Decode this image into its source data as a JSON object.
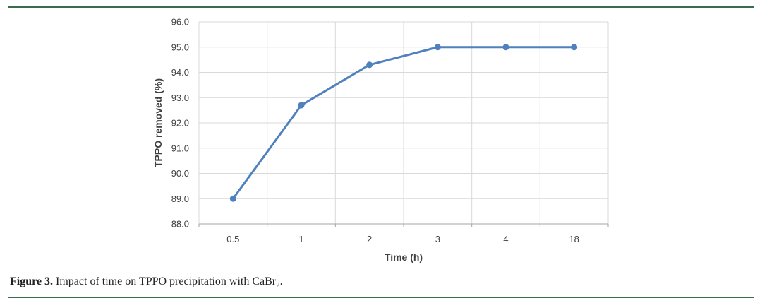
{
  "caption": {
    "label": "Figure 3.",
    "text_before": " Impact of time on TPPO precipitation with CaBr",
    "subscript": "2",
    "text_after": "."
  },
  "chart_data": {
    "type": "line",
    "categories": [
      "0.5",
      "1",
      "2",
      "3",
      "4",
      "18"
    ],
    "series": [
      {
        "values": [
          89.0,
          92.7,
          94.3,
          95.0,
          95.0,
          95.0
        ],
        "color": "#4f81bd"
      }
    ],
    "xlabel": "Time (h)",
    "ylabel": "TPPO removed (%)",
    "ylim": [
      88.0,
      96.0
    ],
    "yticks": [
      "88.0",
      "89.0",
      "90.0",
      "91.0",
      "92.0",
      "93.0",
      "94.0",
      "95.0",
      "96.0"
    ],
    "grid": true,
    "gridColor": "#d9d9d9",
    "axisColor": "#a6a6a6"
  }
}
